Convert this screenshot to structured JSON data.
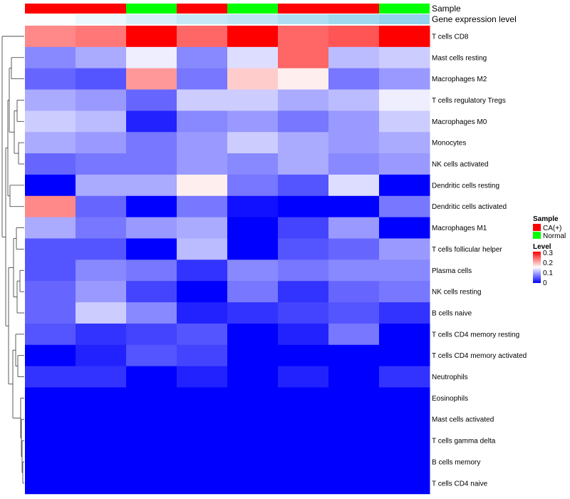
{
  "chart_data": {
    "type": "heatmap",
    "title": "",
    "annotations": [
      {
        "name": "Sample",
        "values": [
          "CA(+)",
          "CA(+)",
          "Normal",
          "CA(+)",
          "Normal",
          "CA(+)",
          "CA(+)",
          "Normal"
        ]
      },
      {
        "name": "Gene expression level",
        "values": [
          0.01,
          0.05,
          0.1,
          0.14,
          0.16,
          0.2,
          0.24,
          0.27
        ]
      }
    ],
    "rows": [
      "T cells CD8",
      "Mast cells resting",
      "Macrophages M2",
      "T cells regulatory  Tregs",
      "Macrophages M0",
      "Monocytes",
      "NK cells activated",
      "Dendritic cells resting",
      "Dendritic cells activated",
      "Macrophages M1",
      "T cells follicular helper",
      "Plasma cells",
      "NK cells resting",
      "B cells naive",
      "T cells CD4 memory resting",
      "T cells CD4 memory activated",
      "Neutrophils",
      "Eosinophils",
      "Mast cells activated",
      "T cells gamma delta",
      "B cells memory",
      "T cells CD4 naive"
    ],
    "values": [
      [
        0.22,
        0.23,
        0.3,
        0.24,
        0.3,
        0.24,
        0.25,
        0.3
      ],
      [
        0.08,
        0.1,
        0.14,
        0.08,
        0.13,
        0.24,
        0.11,
        0.12
      ],
      [
        0.06,
        0.05,
        0.21,
        0.07,
        0.18,
        0.16,
        0.07,
        0.09
      ],
      [
        0.1,
        0.09,
        0.06,
        0.12,
        0.12,
        0.1,
        0.11,
        0.14
      ],
      [
        0.12,
        0.11,
        0.02,
        0.08,
        0.09,
        0.07,
        0.09,
        0.12
      ],
      [
        0.1,
        0.09,
        0.07,
        0.09,
        0.12,
        0.1,
        0.09,
        0.1
      ],
      [
        0.06,
        0.07,
        0.07,
        0.09,
        0.08,
        0.1,
        0.08,
        0.09
      ],
      [
        0.0,
        0.1,
        0.1,
        0.16,
        0.07,
        0.05,
        0.13,
        0.0
      ],
      [
        0.22,
        0.06,
        0.0,
        0.07,
        0.01,
        0.0,
        0.0,
        0.07
      ],
      [
        0.1,
        0.07,
        0.09,
        0.1,
        0.0,
        0.04,
        0.09,
        0.0
      ],
      [
        0.05,
        0.05,
        0.0,
        0.11,
        0.0,
        0.05,
        0.06,
        0.09
      ],
      [
        0.05,
        0.08,
        0.07,
        0.03,
        0.08,
        0.07,
        0.08,
        0.08
      ],
      [
        0.06,
        0.09,
        0.04,
        0.0,
        0.07,
        0.03,
        0.06,
        0.07
      ],
      [
        0.06,
        0.12,
        0.08,
        0.02,
        0.03,
        0.04,
        0.05,
        0.03
      ],
      [
        0.05,
        0.03,
        0.04,
        0.05,
        0.0,
        0.02,
        0.07,
        0.0
      ],
      [
        0.0,
        0.02,
        0.05,
        0.04,
        0.0,
        0.0,
        0.0,
        0.0
      ],
      [
        0.03,
        0.03,
        0.0,
        0.02,
        0.0,
        0.02,
        0.0,
        0.03
      ],
      [
        0.0,
        0.0,
        0.0,
        0.0,
        0.0,
        0.0,
        0.0,
        0.0
      ],
      [
        0.0,
        0.0,
        0.0,
        0.0,
        0.0,
        0.0,
        0.0,
        0.0
      ],
      [
        0.0,
        0.0,
        0.0,
        0.0,
        0.0,
        0.0,
        0.0,
        0.0
      ],
      [
        0.0,
        0.0,
        0.0,
        0.0,
        0.0,
        0.0,
        0.0,
        0.0
      ],
      [
        0.0,
        0.0,
        0.0,
        0.0,
        0.0,
        0.0,
        0.0,
        0.0
      ]
    ],
    "color_scale": {
      "min": 0,
      "mid": 0.15,
      "max": 0.3,
      "low": "#0000ff",
      "midColor": "#ffffff",
      "high": "#ff0000"
    },
    "legend": {
      "sample_title": "Sample",
      "sample_items": [
        {
          "label": "CA(+)",
          "color": "#ff0000"
        },
        {
          "label": "Normal",
          "color": "#00ff00"
        }
      ],
      "level_title": "Level",
      "level_ticks": [
        "0.3",
        "0.2",
        "0.1",
        "0"
      ],
      "level_tick_values": [
        0.3,
        0.2,
        0.1,
        0
      ]
    },
    "expression_colors": {
      "low": "#ffffff",
      "high": "#87ceeb",
      "range": [
        0,
        0.3
      ]
    },
    "row_dendrogram": true
  }
}
